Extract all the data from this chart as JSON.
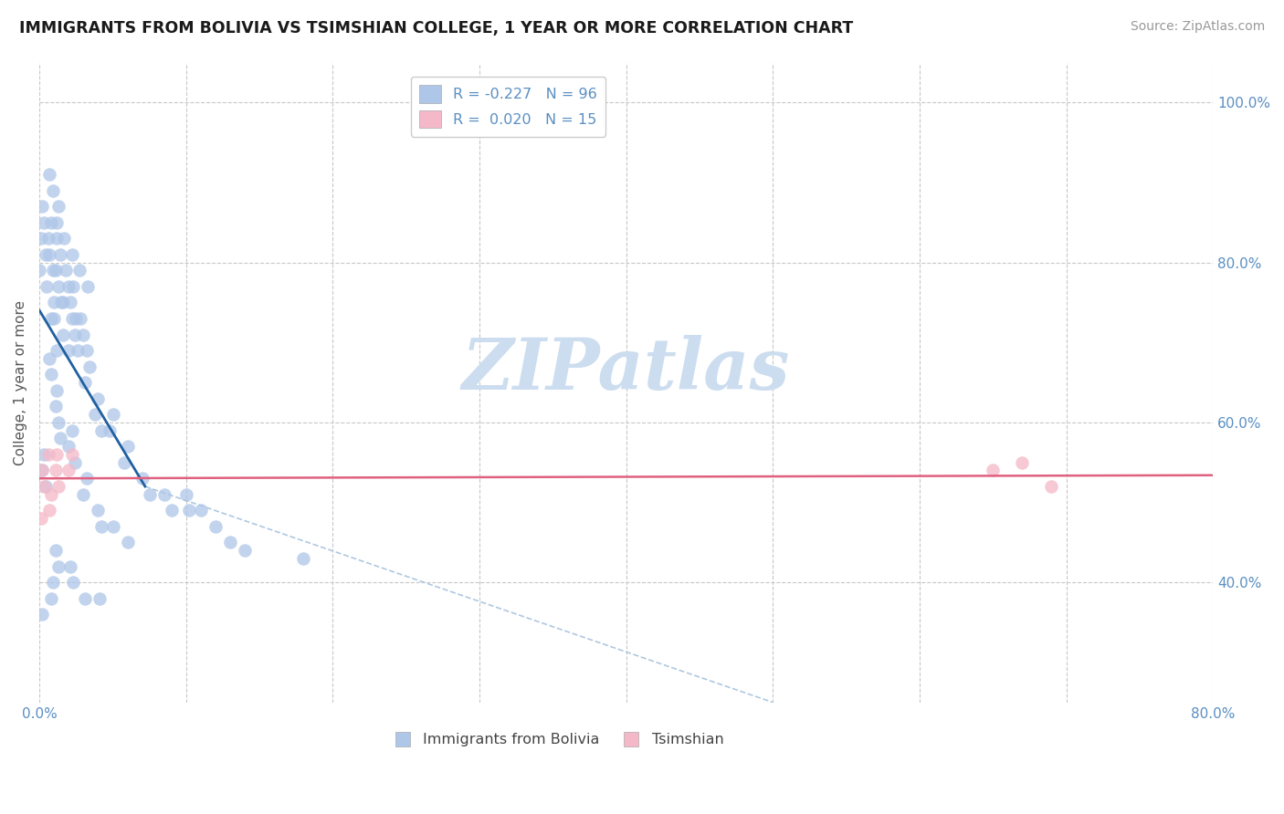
{
  "title": "IMMIGRANTS FROM BOLIVIA VS TSIMSHIAN COLLEGE, 1 YEAR OR MORE CORRELATION CHART",
  "source_text": "Source: ZipAtlas.com",
  "ylabel": "College, 1 year or more",
  "xlim": [
    0.0,
    0.8
  ],
  "ylim": [
    0.25,
    1.05
  ],
  "xticks": [
    0.0,
    0.1,
    0.2,
    0.3,
    0.4,
    0.5,
    0.6,
    0.7,
    0.8
  ],
  "xticklabels_show": [
    "0.0%",
    "80.0%"
  ],
  "xticklabels_pos": [
    0.0,
    0.8
  ],
  "yticks": [
    0.4,
    0.6,
    0.8,
    1.0
  ],
  "yticklabels": [
    "40.0%",
    "60.0%",
    "80.0%",
    "100.0%"
  ],
  "legend_blue_label": "R = -0.227   N = 96",
  "legend_pink_label": "R =  0.020   N = 15",
  "legend_blue_color": "#aec6e8",
  "legend_pink_color": "#f4b8c8",
  "scatter_blue_color": "#aec6e8",
  "scatter_pink_color": "#f4b8c8",
  "line_blue_color": "#2060a0",
  "line_pink_color": "#e06080",
  "line_dashed_color": "#b0c8e0",
  "watermark": "ZIPatlas",
  "watermark_color": "#ccddf0",
  "title_color": "#1a1a1a",
  "axis_color": "#5a8fc2",
  "grid_color": "#c8c8c8",
  "blue_scatter_x": [
    0.002,
    0.003,
    0.001,
    0.004,
    0.0,
    0.008,
    0.006,
    0.007,
    0.009,
    0.005,
    0.01,
    0.008,
    0.012,
    0.014,
    0.011,
    0.013,
    0.015,
    0.01,
    0.016,
    0.012,
    0.018,
    0.02,
    0.016,
    0.022,
    0.023,
    0.021,
    0.025,
    0.024,
    0.02,
    0.028,
    0.03,
    0.026,
    0.032,
    0.034,
    0.031,
    0.04,
    0.038,
    0.042,
    0.05,
    0.048,
    0.06,
    0.058,
    0.07,
    0.075,
    0.085,
    0.09,
    0.1,
    0.102,
    0.11,
    0.12,
    0.13,
    0.14,
    0.18,
    0.003,
    0.002,
    0.004,
    0.007,
    0.008,
    0.012,
    0.011,
    0.013,
    0.014,
    0.022,
    0.02,
    0.024,
    0.032,
    0.03,
    0.04,
    0.042,
    0.05,
    0.06,
    0.002,
    0.008,
    0.009,
    0.013,
    0.011,
    0.021,
    0.023,
    0.031,
    0.041,
    0.007,
    0.009,
    0.013,
    0.012,
    0.017,
    0.022,
    0.027,
    0.033
  ],
  "blue_scatter_y": [
    0.87,
    0.85,
    0.83,
    0.81,
    0.79,
    0.85,
    0.83,
    0.81,
    0.79,
    0.77,
    0.75,
    0.73,
    0.83,
    0.81,
    0.79,
    0.77,
    0.75,
    0.73,
    0.71,
    0.69,
    0.79,
    0.77,
    0.75,
    0.73,
    0.77,
    0.75,
    0.73,
    0.71,
    0.69,
    0.73,
    0.71,
    0.69,
    0.69,
    0.67,
    0.65,
    0.63,
    0.61,
    0.59,
    0.61,
    0.59,
    0.57,
    0.55,
    0.53,
    0.51,
    0.51,
    0.49,
    0.51,
    0.49,
    0.49,
    0.47,
    0.45,
    0.44,
    0.43,
    0.56,
    0.54,
    0.52,
    0.68,
    0.66,
    0.64,
    0.62,
    0.6,
    0.58,
    0.59,
    0.57,
    0.55,
    0.53,
    0.51,
    0.49,
    0.47,
    0.47,
    0.45,
    0.36,
    0.38,
    0.4,
    0.42,
    0.44,
    0.42,
    0.4,
    0.38,
    0.38,
    0.91,
    0.89,
    0.87,
    0.85,
    0.83,
    0.81,
    0.79,
    0.77
  ],
  "pink_scatter_x": [
    0.002,
    0.003,
    0.001,
    0.006,
    0.008,
    0.007,
    0.012,
    0.011,
    0.013,
    0.022,
    0.02,
    0.65,
    0.67,
    0.69
  ],
  "pink_scatter_y": [
    0.54,
    0.52,
    0.48,
    0.56,
    0.51,
    0.49,
    0.56,
    0.54,
    0.52,
    0.56,
    0.54,
    0.54,
    0.55,
    0.52
  ],
  "blue_line_x": [
    0.0,
    0.072
  ],
  "blue_line_y": [
    0.74,
    0.52
  ],
  "pink_line_x": [
    0.0,
    0.8
  ],
  "pink_line_y": [
    0.53,
    0.534
  ],
  "dashed_line_x": [
    0.072,
    0.5
  ],
  "dashed_line_y": [
    0.52,
    0.25
  ],
  "bottom_legend_blue": "Immigrants from Bolivia",
  "bottom_legend_pink": "Tsimshian"
}
